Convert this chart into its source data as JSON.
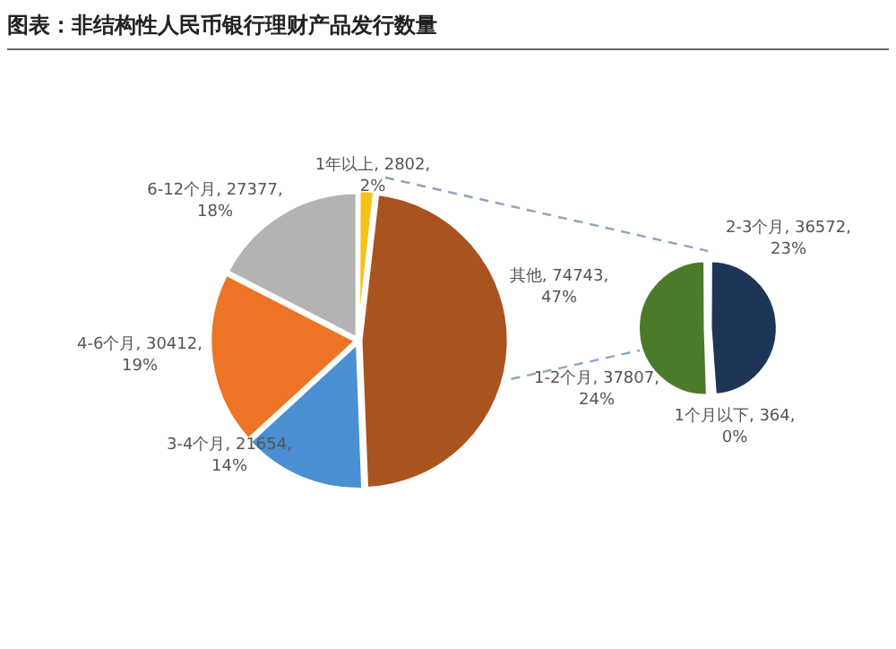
{
  "chart_data": [
    {
      "type": "pie",
      "title": "图表：非结构性人民币银行理财产品发行数量",
      "categories": [
        "1年以上",
        "其他",
        "3-4个月",
        "4-6个月",
        "6-12个月"
      ],
      "values": [
        2802,
        74743,
        21654,
        30412,
        27377
      ],
      "colors": [
        "#f5c21b",
        "#a9531f",
        "#4a8fd2",
        "#ed7424",
        "#b3b3b3"
      ],
      "value_labels": [
        ", 2802, 2%",
        ", 74743, 47%",
        ", 21654, 14%",
        ", 30412, 19%",
        ", 27377, 18%"
      ],
      "legend": false
    },
    {
      "type": "pie",
      "categories": [
        "2-3个月",
        "1个月以下",
        "1-2个月"
      ],
      "values": [
        36572,
        364,
        37807
      ],
      "colors": [
        "#1d3557",
        "#2e75b6",
        "#4b7a2b"
      ],
      "value_labels": [
        ", 36572, 23%",
        ", 364, 0%",
        ", 37807, 24%"
      ],
      "legend": false
    }
  ]
}
